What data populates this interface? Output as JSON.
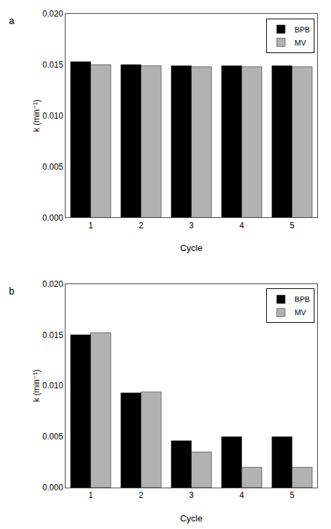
{
  "chart_data": [
    {
      "type": "bar",
      "annotations": [
        "a"
      ],
      "categories": [
        "1",
        "2",
        "3",
        "4",
        "5"
      ],
      "series": [
        {
          "name": "BPB",
          "color": "#000000",
          "values": [
            0.0153,
            0.015,
            0.0149,
            0.0149,
            0.0149
          ]
        },
        {
          "name": "MV",
          "color": "#b2b2b2",
          "values": [
            0.015,
            0.0149,
            0.0148,
            0.0148,
            0.0148
          ]
        }
      ],
      "xlabel": "Cycle",
      "ylabel": "k (min⁻¹)",
      "ylim": [
        0.0,
        0.02
      ],
      "yticks": [
        {
          "value": 0.0,
          "label": "0.000"
        },
        {
          "value": 0.005,
          "label": "0.005"
        },
        {
          "value": 0.01,
          "label": "0.010"
        },
        {
          "value": 0.015,
          "label": "0.015"
        },
        {
          "value": 0.02,
          "label": "0.020"
        }
      ],
      "grid": false,
      "legend": "upper right"
    },
    {
      "type": "bar",
      "annotations": [
        "b"
      ],
      "categories": [
        "1",
        "2",
        "3",
        "4",
        "5"
      ],
      "series": [
        {
          "name": "BPB",
          "color": "#000000",
          "values": [
            0.015,
            0.0093,
            0.0046,
            0.005,
            0.005
          ]
        },
        {
          "name": "MV",
          "color": "#b2b2b2",
          "values": [
            0.0152,
            0.0094,
            0.0035,
            0.002,
            0.002
          ]
        }
      ],
      "xlabel": "Cycle",
      "ylabel": "k (min⁻¹)",
      "ylim": [
        0.0,
        0.02
      ],
      "yticks": [
        {
          "value": 0.0,
          "label": "0.000"
        },
        {
          "value": 0.005,
          "label": "0.005"
        },
        {
          "value": 0.01,
          "label": "0.010"
        },
        {
          "value": 0.015,
          "label": "0.015"
        },
        {
          "value": 0.02,
          "label": "0.020"
        }
      ],
      "grid": false,
      "legend": "upper right"
    }
  ]
}
